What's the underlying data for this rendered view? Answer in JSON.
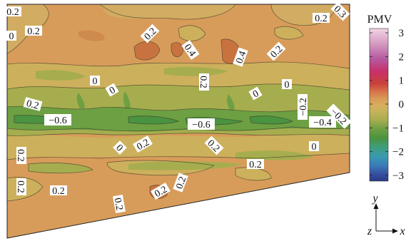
{
  "chart_data": {
    "type": "heatmap",
    "colorbar": {
      "title": "PMV",
      "ticks": [
        3,
        2,
        1,
        0,
        -1,
        -2,
        -3
      ],
      "tick_labels": [
        "3",
        "2",
        "1",
        "0",
        "−1",
        "−2",
        "−3"
      ],
      "range": [
        -3,
        3
      ],
      "colors_top_to_bottom": [
        "#f2d5e6",
        "#d59ac0",
        "#b459a0",
        "#c8306a",
        "#c8403a",
        "#d97a4a",
        "#d89a56",
        "#d8ad5e",
        "#c7b35a",
        "#a6ad4e",
        "#6d9f43",
        "#4a9340",
        "#3f9e7e",
        "#3a9ab0",
        "#3a7ab8",
        "#3651a0",
        "#2b3a8a"
      ]
    },
    "contour_labels": [
      "0.2",
      "0.2",
      "0",
      "0.2",
      "0.4",
      "0.4",
      "0.2",
      "0.3",
      "0.2",
      "0",
      "0",
      "0.2",
      "0",
      "0.2",
      "−0.6",
      "−0.6",
      "−0.2",
      "−0.4",
      "−0.2",
      "0.2",
      "0",
      "0.2",
      "0.2",
      "0",
      "0.2",
      "0.2",
      "0.2",
      "0.2",
      "0.2",
      "0"
    ],
    "axes_triad": {
      "y": "y",
      "z": "z",
      "x": "x"
    }
  }
}
